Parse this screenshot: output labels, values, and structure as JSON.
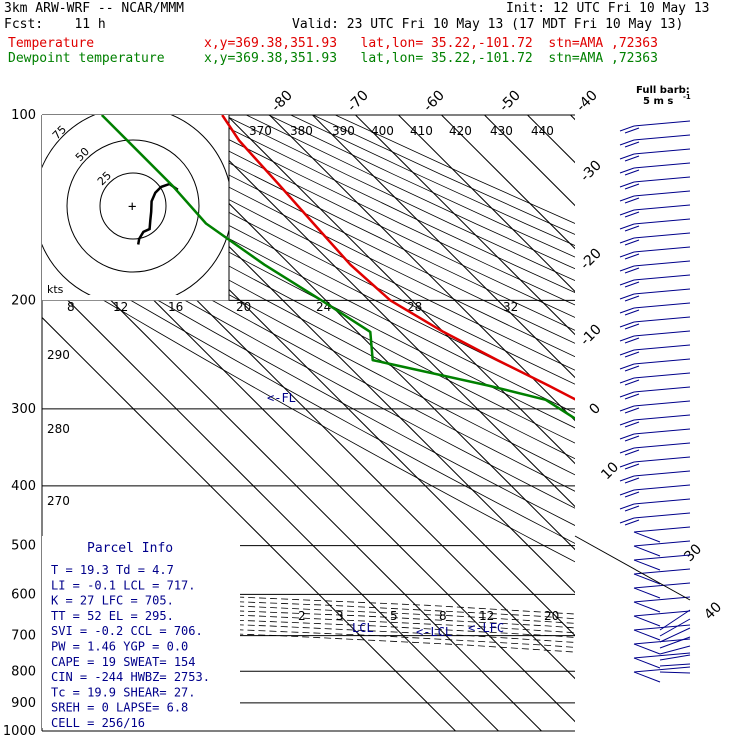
{
  "header": {
    "model": "3km ARW-WRF -- NCAR/MMM",
    "init": "Init: 12 UTC Fri 10 May 13",
    "fcst": "Fcst:    11 h",
    "valid": "Valid: 23 UTC Fri 10 May 13 (17 MDT Fri 10 May 13)",
    "temp_label": "Temperature",
    "temp_loc": "x,y=369.38,351.93   lat,lon= 35.22,-101.72  stn=AMA ,72363",
    "dew_label": "Dewpoint temperature",
    "dew_loc": "x,y=369.38,351.93   lat,lon= 35.22,-101.72  stn=AMA ,72363"
  },
  "colors": {
    "temperature": "#e00000",
    "dewpoint": "#008000",
    "hodograph": "#000000",
    "wind_barbs": "#00008b",
    "parcel_info": "#00008b"
  },
  "legend": {
    "full_barb_title": "Full barb:",
    "full_barb_value": "5 m s",
    "full_barb_exp": "-1"
  },
  "hodograph": {
    "speed_unit": "kts",
    "ring_labels": [
      "25",
      "50",
      "75"
    ]
  },
  "parcel_info": {
    "title": "Parcel Info",
    "rows": [
      "T  =    19.3 Td =    4.7",
      "LI =    -0.1 LCL =  717.",
      "K  =      27 LFC =  705.",
      "TT =      52 EL  =  295.",
      "SVI =   -0.2 CCL =  706.",
      "PW =    1.46 YGP =   0.0",
      "CAPE =    19 SWEAT=  154",
      "CIN =   -244 HWBZ= 2753.",
      "Tc =    19.9 SHEAR=  27.",
      "SREH =     0 LAPSE=  6.8",
      "CELL = 256/16"
    ]
  },
  "chart_data": {
    "type": "line",
    "title": "",
    "y_axis": "pressure (hPa)",
    "pressure_levels": [
      100,
      200,
      300,
      400,
      500,
      600,
      700,
      800,
      900,
      1000
    ],
    "isotherm_labels": [
      "-80",
      "-70",
      "-60",
      "-50",
      "-40",
      "-30",
      "-20",
      "-10",
      "0",
      "10",
      "20",
      "30",
      "40"
    ],
    "theta_e_labels": [
      "370",
      "380",
      "390",
      "400",
      "410",
      "420",
      "430",
      "440"
    ],
    "theta_labels": [
      "290",
      "280",
      "270"
    ],
    "mixing_ratio_labels_upper": [
      "8",
      "12",
      "16",
      "20",
      "24",
      "28",
      "32"
    ],
    "mixing_ratio_labels_lower": [
      "2",
      "3",
      "5",
      "8",
      "12",
      "20"
    ],
    "annotations": [
      "<-FL",
      "LCL",
      "<-LCL",
      "<-LFC"
    ],
    "series": [
      {
        "name": "Temperature",
        "points": [
          [
            100,
            -51
          ],
          [
            110,
            -53
          ],
          [
            130,
            -54
          ],
          [
            150,
            -55
          ],
          [
            175,
            -56
          ],
          [
            200,
            -55
          ],
          [
            225,
            -50
          ],
          [
            250,
            -44
          ],
          [
            275,
            -38
          ],
          [
            300,
            -33
          ],
          [
            350,
            -25
          ],
          [
            400,
            -18
          ],
          [
            450,
            -12
          ],
          [
            500,
            -7
          ],
          [
            550,
            -2
          ],
          [
            600,
            2
          ],
          [
            650,
            6
          ],
          [
            700,
            10
          ],
          [
            750,
            13
          ],
          [
            800,
            16
          ],
          [
            860,
            19
          ]
        ]
      },
      {
        "name": "Dewpoint temperature",
        "points": [
          [
            100,
            -79
          ],
          [
            130,
            -79
          ],
          [
            150,
            -80
          ],
          [
            175,
            -76
          ],
          [
            200,
            -71
          ],
          [
            225,
            -67
          ],
          [
            250,
            -73
          ],
          [
            275,
            -52
          ],
          [
            290,
            -42
          ],
          [
            325,
            -38
          ],
          [
            350,
            -40
          ],
          [
            375,
            -37
          ],
          [
            400,
            -34
          ],
          [
            450,
            -28
          ],
          [
            500,
            -22
          ],
          [
            550,
            -16
          ],
          [
            600,
            -13
          ],
          [
            650,
            -11
          ],
          [
            700,
            -4
          ],
          [
            740,
            0
          ],
          [
            760,
            2
          ],
          [
            800,
            2
          ],
          [
            860,
            4
          ]
        ]
      }
    ],
    "hodograph_points": [
      [
        4.5,
        37.3
      ],
      [
        6.1,
        30.4
      ],
      [
        5.3,
        23.5
      ],
      [
        3.7,
        18.6
      ],
      [
        1.3,
        15.5
      ],
      [
        -1.6,
        15.2
      ],
      [
        -4.0,
        14.4
      ],
      [
        -6.4,
        13.8
      ],
      [
        -7.2,
        8.7
      ],
      [
        -9.1,
        5.2
      ],
      [
        -10.7,
        4.3
      ]
    ]
  }
}
